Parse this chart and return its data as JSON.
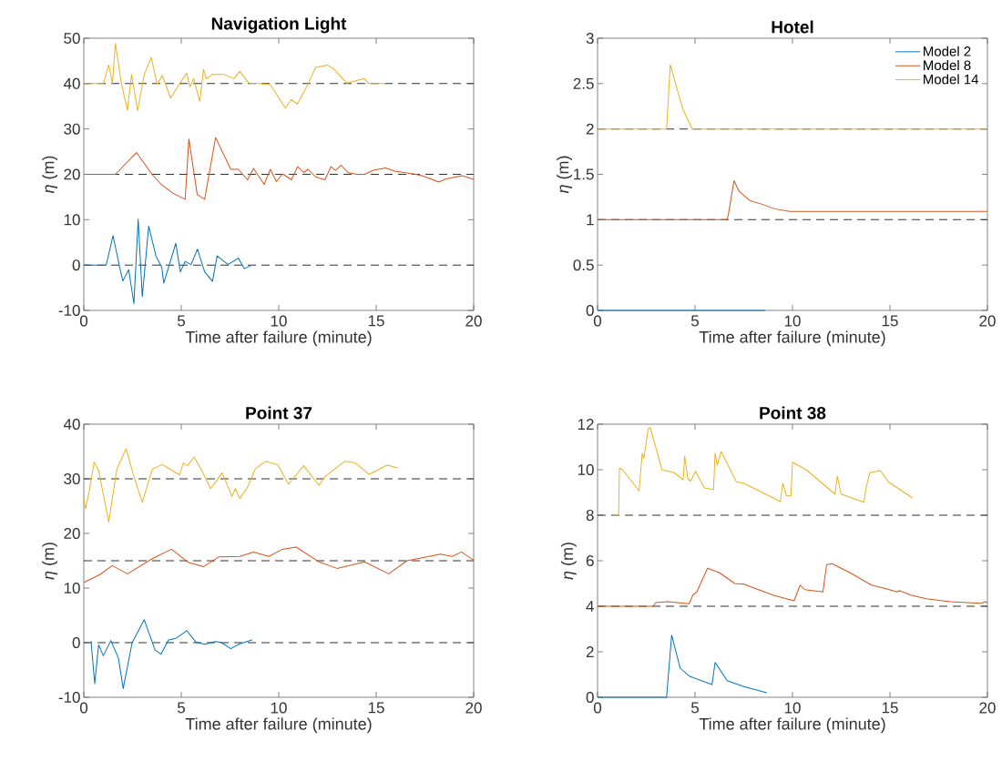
{
  "chart_data": [
    {
      "type": "line",
      "title": "Navigation Light",
      "xlabel": "Time after failure (minute)",
      "ylabel": "*η* (m)",
      "xlim": [
        0,
        20
      ],
      "ylim": [
        -10,
        50
      ],
      "xticks": [
        0,
        5,
        10,
        15,
        20
      ],
      "yticks": [
        -10,
        0,
        10,
        20,
        30,
        40,
        50
      ],
      "series": [
        {
          "color": "#0072bd",
          "x": [
            0,
            1.15,
            1.5,
            1.84,
            2.0,
            2.3,
            2.57,
            2.79,
            3.0,
            3.33,
            3.7,
            4.0,
            4.1,
            4.72,
            4.95,
            5.2,
            5.5,
            5.83,
            6.2,
            6.6,
            6.84,
            7.4,
            7.93,
            8.24,
            8.63
          ],
          "values": [
            0,
            0,
            6.5,
            -0.5,
            -3.5,
            -1,
            -8.5,
            10.1,
            -7,
            8.6,
            2,
            -0.5,
            -4,
            4.8,
            -1.5,
            0.8,
            0.1,
            3.5,
            -1.5,
            -3.6,
            2,
            0.1,
            1.5,
            -0.8,
            0
          ]
        },
        {
          "color": "#d95319",
          "x": [
            0,
            1.62,
            2.7,
            3.5,
            3.96,
            4.58,
            5.2,
            5.39,
            5.82,
            6.2,
            6.76,
            7.54,
            7.93,
            8.4,
            8.71,
            9.25,
            9.57,
            9.88,
            10.2,
            10.65,
            10.97,
            11.28,
            11.51,
            11.9,
            12.37,
            12.68,
            12.91,
            13.2,
            13.54,
            14.0,
            14.4,
            14.86,
            15.48,
            15.95,
            16.4,
            16.9,
            17.35,
            17.8,
            18.2,
            18.6,
            19.4,
            20
          ],
          "values": [
            20,
            20,
            24.8,
            20,
            17.8,
            15.8,
            14.5,
            27.8,
            15.5,
            14.5,
            28.1,
            21.1,
            21.1,
            18.8,
            21.3,
            17.8,
            21.1,
            18.4,
            20.1,
            18.8,
            21.7,
            20.4,
            21.1,
            19.4,
            18.8,
            21.7,
            20.9,
            22,
            20.4,
            20,
            20,
            20.9,
            21.4,
            20.7,
            20.4,
            20.1,
            19.7,
            19,
            18.3,
            19,
            19.7,
            18.9
          ]
        },
        {
          "color": "#edb120",
          "x": [
            0,
            1.0,
            1.28,
            1.47,
            1.62,
            1.93,
            2.24,
            2.45,
            2.76,
            3.1,
            3.46,
            3.77,
            4.03,
            4.45,
            4.89,
            5.28,
            5.44,
            5.64,
            5.95,
            6.14,
            6.29,
            6.6,
            7.2,
            7.7,
            8.0,
            8.47,
            8.94,
            9.56,
            10.34,
            10.65,
            10.96,
            11.43,
            11.9,
            12.5,
            12.8,
            13.5,
            14.4,
            14.6,
            15.5
          ],
          "values": [
            40,
            40,
            44.1,
            40,
            48.9,
            40,
            34.1,
            42,
            34,
            42,
            45.8,
            39.8,
            41.8,
            36.8,
            39.8,
            42.3,
            39.3,
            41.1,
            36.1,
            43.1,
            41.1,
            42,
            42,
            41.1,
            42.7,
            40.1,
            40,
            39.8,
            34.6,
            36.5,
            35.5,
            39.3,
            43.6,
            44.1,
            43.3,
            40.1,
            41.1,
            40,
            40
          ]
        }
      ],
      "ref_lines": [
        {
          "axis": "y",
          "value": 40,
          "color": "#333333",
          "line_style": "dashed"
        },
        {
          "axis": "y",
          "value": 20,
          "color": "#333333",
          "line_style": "dashed"
        },
        {
          "axis": "y",
          "value": 0,
          "color": "#333333",
          "line_style": "dashed"
        }
      ]
    },
    {
      "type": "line",
      "title": "Hotel",
      "xlabel": "Time after failure (minute)",
      "ylabel": "*η* (m)",
      "xlim": [
        0,
        20
      ],
      "ylim": [
        0,
        3
      ],
      "xticks": [
        0,
        5,
        10,
        15,
        20
      ],
      "yticks": [
        0,
        0.5,
        1,
        1.5,
        2,
        2.5,
        3
      ],
      "legend": "top right",
      "series": [
        {
          "name": "Model 2",
          "color": "#0072bd",
          "x": [
            0,
            8.6
          ],
          "values": [
            0,
            0
          ]
        },
        {
          "name": "Model 8",
          "color": "#d95319",
          "x": [
            0,
            6.65,
            6.72,
            7.0,
            7.27,
            7.82,
            8.44,
            9.07,
            9.85,
            20
          ],
          "values": [
            1,
            1,
            1.07,
            1.43,
            1.31,
            1.21,
            1.17,
            1.12,
            1.09,
            1.09
          ]
        },
        {
          "name": "Model 14",
          "color": "#edb120",
          "x": [
            0,
            3.54,
            3.73,
            4.08,
            4.39,
            4.86,
            20
          ],
          "values": [
            2,
            2,
            2.71,
            2.44,
            2.21,
            2,
            2
          ]
        }
      ],
      "ref_lines": [
        {
          "axis": "y",
          "value": 2,
          "color": "#333333",
          "line_style": "dashed"
        },
        {
          "axis": "y",
          "value": 1,
          "color": "#333333",
          "line_style": "dashed"
        }
      ]
    },
    {
      "type": "line",
      "title": "Point 37",
      "xlabel": "Time after failure (minute)",
      "ylabel": "*η* (m)",
      "xlim": [
        0,
        20
      ],
      "ylim": [
        -10,
        40
      ],
      "xticks": [
        0,
        5,
        10,
        15,
        20
      ],
      "yticks": [
        -10,
        0,
        10,
        20,
        30,
        40
      ],
      "series": [
        {
          "color": "#0072bd",
          "x": [
            0.37,
            0.56,
            0.76,
            1.0,
            1.39,
            1.78,
            2.02,
            2.48,
            3.1,
            3.65,
            3.96,
            4.35,
            4.74,
            5.28,
            5.75,
            6.22,
            6.76,
            7.07,
            7.54,
            8.0,
            8.63
          ],
          "values": [
            0.3,
            -7.5,
            -0.4,
            -2.4,
            0.4,
            -2.9,
            -8.4,
            0,
            4.2,
            -1.3,
            -2.1,
            0.5,
            0.8,
            2.2,
            0.1,
            -0.3,
            0.2,
            0,
            -1.1,
            -0.2,
            0.5
          ]
        },
        {
          "color": "#d95319",
          "x": [
            0,
            0.84,
            1.46,
            2.24,
            3.57,
            4.5,
            5.36,
            6.14,
            6.92,
            8.0,
            8.71,
            9.49,
            10.19,
            10.89,
            12.06,
            12.99,
            14.4,
            15.64,
            16.58,
            18.3,
            18.9,
            19.38,
            20
          ],
          "values": [
            11,
            12.5,
            14.1,
            12.6,
            15.5,
            17.1,
            14.7,
            13.9,
            15.7,
            15.8,
            16.6,
            15.8,
            17.1,
            17.5,
            14.8,
            13.6,
            14.8,
            12.6,
            15,
            16.2,
            15.8,
            16.6,
            15.1
          ]
        },
        {
          "color": "#edb120",
          "x": [
            0,
            0.09,
            0.3,
            0.53,
            0.76,
            1.28,
            1.7,
            2.17,
            2.55,
            3.0,
            3.52,
            4.03,
            4.4,
            4.92,
            5.1,
            5.32,
            5.66,
            6.1,
            6.5,
            6.8,
            7.1,
            7.6,
            7.77,
            8.0,
            8.4,
            8.79,
            9.33,
            9.95,
            10.5,
            11.28,
            12.06,
            12.37,
            13.38,
            13.93,
            14.63,
            15.56,
            16.1
          ],
          "values": [
            26.5,
            24.5,
            28.2,
            33.1,
            31.5,
            22.1,
            31.8,
            35.5,
            30.7,
            25.7,
            31.8,
            32.6,
            31.8,
            30.7,
            32.9,
            32.4,
            34,
            31.2,
            28.2,
            29.6,
            31.1,
            26.8,
            28.2,
            26.4,
            28.5,
            31.8,
            33.2,
            32.6,
            29,
            32.4,
            28.8,
            30.4,
            33.2,
            32.9,
            30.8,
            32.5,
            32
          ]
        }
      ],
      "ref_lines": [
        {
          "axis": "y",
          "value": 30,
          "color": "#333333",
          "line_style": "dashed"
        },
        {
          "axis": "y",
          "value": 15,
          "color": "#333333",
          "line_style": "dashed"
        },
        {
          "axis": "y",
          "value": 0,
          "color": "#333333",
          "line_style": "dashed"
        }
      ]
    },
    {
      "type": "line",
      "title": "Point 38",
      "xlabel": "Time after failure (minute)",
      "ylabel": "*η* (m)",
      "xlim": [
        0,
        20
      ],
      "ylim": [
        0,
        12
      ],
      "xticks": [
        0,
        5,
        10,
        15,
        20
      ],
      "yticks": [
        0,
        2,
        4,
        6,
        8,
        10,
        12
      ],
      "series": [
        {
          "color": "#0072bd",
          "x": [
            0,
            3.54,
            3.8,
            4.24,
            4.7,
            5.87,
            6.03,
            6.65,
            7.51,
            8.68
          ],
          "values": [
            0,
            0,
            2.73,
            1.28,
            0.93,
            0.56,
            1.53,
            0.73,
            0.47,
            0.2
          ]
        },
        {
          "color": "#d95319",
          "x": [
            0,
            2.84,
            2.99,
            3.61,
            4.7,
            4.89,
            5.09,
            5.64,
            6.26,
            7.04,
            7.5,
            9.07,
            10.08,
            10.39,
            10.63,
            11.56,
            11.75,
            12.03,
            12.96,
            14.05,
            14.67,
            15.37,
            15.48,
            16.07,
            16.85,
            18.1,
            19.66,
            19.9,
            20
          ],
          "values": [
            4,
            4,
            4.16,
            4.2,
            4.11,
            4.49,
            4.63,
            5.67,
            5.47,
            5,
            4.97,
            4.47,
            4.24,
            4.93,
            4.73,
            4.63,
            5.83,
            5.87,
            5.47,
            4.93,
            4.8,
            4.63,
            4.69,
            4.49,
            4.33,
            4.2,
            4.13,
            4.2,
            4.15
          ]
        },
        {
          "color": "#edb120",
          "x": [
            0.8,
            1.08,
            1.12,
            1.28,
            2.13,
            2.29,
            2.37,
            2.6,
            2.71,
            3.3,
            3.93,
            4.39,
            4.47,
            4.63,
            4.78,
            5.02,
            5.48,
            5.95,
            6.03,
            6.14,
            6.34,
            7.12,
            7.51,
            9.38,
            9.5,
            9.69,
            9.92,
            10.0,
            10.7,
            12.18,
            12.3,
            12.49,
            13.66,
            13.79,
            13.97,
            14.51,
            14.91,
            16.15
          ],
          "values": [
            8,
            8,
            10.07,
            10,
            9.07,
            10.73,
            10.5,
            11.8,
            11.84,
            10,
            9.87,
            9.56,
            10.6,
            9.6,
            9.5,
            9.93,
            9.2,
            9.13,
            10.73,
            10.2,
            10.8,
            9.47,
            9.4,
            8.6,
            9.4,
            8.87,
            8.84,
            10.33,
            10,
            8.93,
            9.73,
            8.93,
            8.57,
            9.27,
            9.87,
            9.96,
            9.47,
            8.76
          ]
        }
      ],
      "ref_lines": [
        {
          "axis": "y",
          "value": 8,
          "color": "#333333",
          "line_style": "dashed"
        },
        {
          "axis": "y",
          "value": 4,
          "color": "#333333",
          "line_style": "dashed"
        }
      ]
    }
  ]
}
